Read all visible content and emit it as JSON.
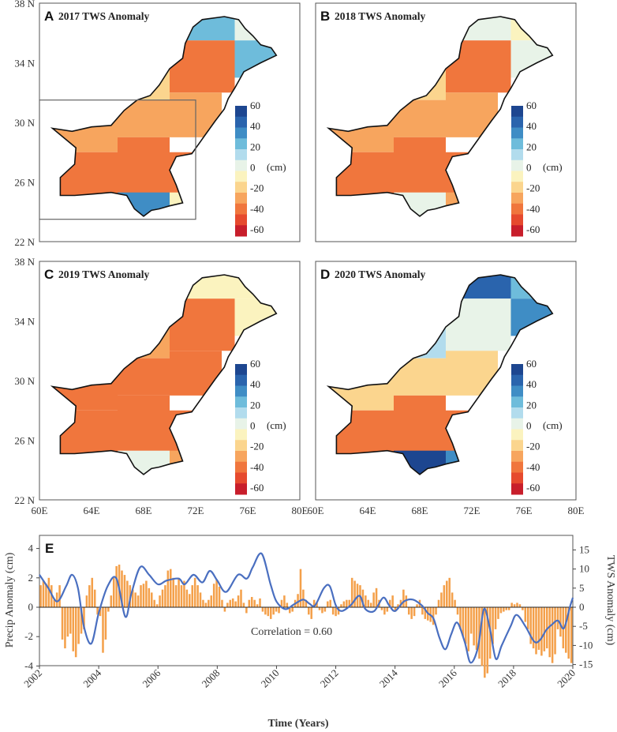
{
  "chart_data": [
    {
      "type": "heatmap",
      "panel": "A",
      "title": "2017 TWS Anomaly",
      "units": "(cm)",
      "colorbar_ticks": [
        "60",
        "40",
        "20",
        "0",
        "-20",
        "-40",
        "-60"
      ],
      "region_values_cm": [
        20,
        0,
        -35,
        20,
        -15,
        -30,
        -30,
        -30,
        -40,
        -40,
        -40,
        30,
        -5
      ],
      "inset_box": true
    },
    {
      "type": "heatmap",
      "panel": "B",
      "title": "2018 TWS Anomaly",
      "units": "(cm)",
      "colorbar_ticks": [
        "60",
        "40",
        "20",
        "0",
        "-20",
        "-40",
        "-60"
      ],
      "region_values_cm": [
        0,
        -5,
        -35,
        0,
        -15,
        -30,
        -30,
        -30,
        -40,
        -40,
        -40,
        5,
        -30
      ],
      "inset_box": false
    },
    {
      "type": "heatmap",
      "panel": "C",
      "title": "2019 TWS Anomaly",
      "units": "(cm)",
      "colorbar_ticks": [
        "60",
        "40",
        "20",
        "0",
        "-20",
        "-40",
        "-60"
      ],
      "region_values_cm": [
        -10,
        -10,
        -40,
        -5,
        -30,
        -35,
        -35,
        -40,
        -40,
        -40,
        -40,
        5,
        -30
      ],
      "inset_box": false
    },
    {
      "type": "heatmap",
      "panel": "D",
      "title": "2020 TWS Anomaly",
      "units": "(cm)",
      "colorbar_ticks": [
        "60",
        "40",
        "20",
        "0",
        "-20",
        "-40",
        "-60"
      ],
      "region_values_cm": [
        40,
        20,
        0,
        30,
        15,
        -15,
        -15,
        -15,
        -40,
        -40,
        -40,
        50,
        35
      ],
      "inset_box": false
    },
    {
      "type": "bar+line",
      "panel": "E",
      "xlabel": "Time (Years)",
      "ylabel_left": "Precip Anomaly (cm)",
      "ylabel_right": "TWS Anomaly (cm)",
      "annotation": "Correlation = 0.60",
      "xlim": [
        2002,
        2020
      ],
      "x_ticks": [
        "2002",
        "2004",
        "2006",
        "2008",
        "2010",
        "2012",
        "2014",
        "2016",
        "2018",
        "2020"
      ],
      "ylim_left": [
        -5,
        5
      ],
      "y_ticks_left": [
        "4",
        "2",
        "0",
        "-2",
        "-4"
      ],
      "ylim_right": [
        -17,
        17
      ],
      "y_ticks_right": [
        "15",
        "10",
        "5",
        "0",
        "-5",
        "-10",
        "-15"
      ],
      "series": [
        {
          "name": "Precip Anomaly",
          "kind": "bar",
          "color": "#f4a04a",
          "values": [
            1.5,
            1.8,
            1.6,
            2.0,
            1.5,
            0.5,
            1.0,
            1.5,
            -2.2,
            -2.8,
            -2.0,
            -1.8,
            -3.0,
            -3.4,
            -2.5,
            -1.8,
            -1.5,
            0.8,
            1.5,
            2.0,
            1.2,
            -0.5,
            -0.6,
            -3.1,
            -2.2,
            -0.3,
            0.8,
            2.0,
            2.8,
            2.9,
            2.5,
            2.2,
            1.8,
            1.5,
            1.2,
            1.0,
            0.8,
            1.5,
            1.6,
            1.8,
            1.3,
            1.0,
            0.5,
            0.2,
            0.8,
            1.2,
            1.5,
            2.5,
            2.6,
            2.0,
            1.5,
            2.0,
            1.5,
            1.8,
            1.2,
            0.9,
            1.5,
            2.0,
            1.5,
            1.0,
            0.5,
            0.3,
            0.5,
            0.8,
            1.6,
            1.9,
            1.4,
            0.5,
            -0.3,
            0.3,
            0.5,
            0.6,
            0.4,
            0.8,
            1.2,
            0.3,
            -0.4,
            0.5,
            0.7,
            0.5,
            0.2,
            0.6,
            -0.3,
            -0.5,
            -0.6,
            -0.8,
            -0.5,
            -0.3,
            -0.4,
            0.5,
            0.8,
            0.3,
            -0.4,
            -0.3,
            0.5,
            0.9,
            2.6,
            1.2,
            0.5,
            -0.5,
            -0.8,
            0.5,
            0.3,
            -0.2,
            -0.4,
            -0.3,
            0.4,
            0.5,
            -0.5,
            -0.6,
            -0.5,
            0.2,
            0.4,
            0.5,
            0.5,
            2.0,
            1.8,
            1.6,
            1.5,
            1.2,
            0.8,
            0.5,
            0.3,
            1.0,
            1.3,
            0.5,
            -0.2,
            -0.5,
            -0.3,
            0.5,
            0.8,
            -0.3,
            0.2,
            0.5,
            1.2,
            0.8,
            -0.5,
            -0.8,
            -0.6,
            0.2,
            0.5,
            -0.5,
            -0.8,
            -0.9,
            -1.0,
            -1.2,
            -0.5,
            0.5,
            1.0,
            1.5,
            1.8,
            2.0,
            1.0,
            0.5,
            -0.5,
            -1.5,
            -2.0,
            -2.5,
            -3.0,
            -1.8,
            -2.6,
            -2.9,
            -3.5,
            -4.0,
            -4.8,
            -4.5,
            -3.5,
            -2.5,
            -1.5,
            -0.8,
            -0.4,
            -0.3,
            -0.2,
            -0.2,
            0.3,
            0.2,
            0.3,
            0.2,
            -0.2,
            -1.0,
            -1.5,
            -2.5,
            -2.8,
            -3.2,
            -2.9,
            -3.3,
            -3.0,
            -2.8,
            -3.4,
            -3.8,
            -3.2,
            -1.5,
            -2.0,
            -2.8,
            -3.1,
            -3.5,
            -3.8
          ]
        },
        {
          "name": "TWS Anomaly",
          "kind": "line",
          "color": "#4a6fc0",
          "points": [
            [
              2002.0,
              8.5
            ],
            [
              2002.3,
              5.0
            ],
            [
              2002.6,
              1.5
            ],
            [
              2002.9,
              5.5
            ],
            [
              2003.1,
              8.5
            ],
            [
              2003.3,
              5.0
            ],
            [
              2003.5,
              -5.0
            ],
            [
              2003.75,
              -9.5
            ],
            [
              2004.0,
              -1.5
            ],
            [
              2004.3,
              5.5
            ],
            [
              2004.6,
              7.5
            ],
            [
              2004.9,
              -2.5
            ],
            [
              2005.1,
              3.5
            ],
            [
              2005.4,
              10.5
            ],
            [
              2005.7,
              8.5
            ],
            [
              2006.0,
              6.0
            ],
            [
              2006.3,
              7.0
            ],
            [
              2006.7,
              7.5
            ],
            [
              2006.9,
              6.0
            ],
            [
              2007.2,
              8.5
            ],
            [
              2007.5,
              6.5
            ],
            [
              2007.75,
              9.5
            ],
            [
              2008.0,
              7.0
            ],
            [
              2008.3,
              4.0
            ],
            [
              2008.7,
              8.5
            ],
            [
              2009.0,
              7.5
            ],
            [
              2009.2,
              10.5
            ],
            [
              2009.5,
              14.0
            ],
            [
              2009.8,
              6.0
            ],
            [
              2010.0,
              1.5
            ],
            [
              2010.3,
              -0.5
            ],
            [
              2010.6,
              0.8
            ],
            [
              2010.9,
              2.0
            ],
            [
              2011.1,
              1.0
            ],
            [
              2011.3,
              0.5
            ],
            [
              2011.6,
              5.0
            ],
            [
              2011.8,
              5.5
            ],
            [
              2012.0,
              0.5
            ],
            [
              2012.2,
              -1.0
            ],
            [
              2012.5,
              0.5
            ],
            [
              2012.8,
              3.0
            ],
            [
              2013.0,
              -0.5
            ],
            [
              2013.3,
              -1.0
            ],
            [
              2013.6,
              2.5
            ],
            [
              2013.8,
              0.5
            ],
            [
              2014.0,
              -1.0
            ],
            [
              2014.3,
              1.5
            ],
            [
              2014.6,
              2.0
            ],
            [
              2014.9,
              0.5
            ],
            [
              2015.1,
              -1.5
            ],
            [
              2015.3,
              -3.0
            ],
            [
              2015.5,
              -8.0
            ],
            [
              2015.7,
              -11.0
            ],
            [
              2015.9,
              -7.0
            ],
            [
              2016.1,
              -4.0
            ],
            [
              2016.35,
              -9.0
            ],
            [
              2016.55,
              -14.5
            ],
            [
              2016.8,
              -10.5
            ],
            [
              2017.0,
              -0.5
            ],
            [
              2017.2,
              -5.5
            ],
            [
              2017.4,
              -13.5
            ],
            [
              2017.6,
              -10.0
            ],
            [
              2017.9,
              -5.0
            ],
            [
              2018.1,
              -2.0
            ],
            [
              2018.4,
              -5.0
            ],
            [
              2018.7,
              -9.0
            ],
            [
              2018.9,
              -8.5
            ],
            [
              2019.1,
              -6.0
            ],
            [
              2019.3,
              -4.5
            ],
            [
              2019.5,
              -3.5
            ],
            [
              2019.7,
              -5.5
            ],
            [
              2019.9,
              0.0
            ],
            [
              2020.0,
              2.5
            ]
          ]
        }
      ]
    }
  ],
  "map_axes": {
    "lat_ticks": [
      "38 N",
      "34 N",
      "30 N",
      "26 N",
      "22 N"
    ],
    "lon_ticks": [
      "60E",
      "64E",
      "68E",
      "72E",
      "76E",
      "80E"
    ]
  },
  "colors": {
    "scale": [
      "#c81e2b",
      "#e64a2e",
      "#f0763d",
      "#f7a55e",
      "#fbd58e",
      "#fbf3bf",
      "#e8f3e8",
      "#b2dced",
      "#6ebcdb",
      "#3f8dc5",
      "#2a64ad",
      "#1d4690"
    ]
  }
}
